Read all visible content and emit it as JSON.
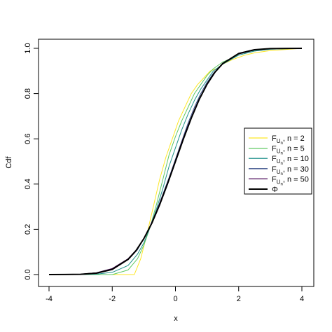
{
  "chart_data": {
    "type": "line",
    "title": "",
    "xlabel": "x",
    "ylabel": "Cdf",
    "xlim": [
      -4,
      4
    ],
    "ylim": [
      0,
      1
    ],
    "xticks": [
      -4,
      -2,
      0,
      2,
      4
    ],
    "yticks": [
      0.0,
      0.2,
      0.4,
      0.6,
      0.8,
      1.0
    ],
    "xtick_labels": [
      "-4",
      "-2",
      "0",
      "2",
      "4"
    ],
    "ytick_labels": [
      "0.0",
      "0.2",
      "0.4",
      "0.6",
      "0.8",
      "1.0"
    ],
    "grid": false,
    "legend_position": "right",
    "series": [
      {
        "legend_prefix": "F",
        "legend_sub": "U",
        "legend_subsub": "n",
        "legend_suffix": ", n = 2",
        "color": "#FDE725",
        "x": [
          -4.0,
          -3.0,
          -2.0,
          -1.6,
          -1.3,
          -1.1,
          -0.9,
          -0.7,
          -0.5,
          -0.3,
          -0.1,
          0.0,
          0.1,
          0.3,
          0.5,
          0.7,
          0.9,
          1.1,
          1.3,
          1.5,
          1.8,
          2.0,
          2.2,
          2.5,
          3.0,
          3.5,
          4.0
        ],
        "y": [
          0.0,
          0.0,
          0.0,
          0.0,
          0.0,
          0.07,
          0.18,
          0.3,
          0.42,
          0.52,
          0.6,
          0.64,
          0.68,
          0.74,
          0.8,
          0.84,
          0.87,
          0.9,
          0.91,
          0.93,
          0.95,
          0.96,
          0.97,
          0.98,
          0.99,
          0.995,
          1.0
        ]
      },
      {
        "legend_prefix": "F",
        "legend_sub": "U",
        "legend_subsub": "n",
        "legend_suffix": ", n = 5",
        "color": "#5EC962",
        "x": [
          -4.0,
          -3.0,
          -2.5,
          -2.0,
          -1.5,
          -1.2,
          -1.0,
          -0.8,
          -0.6,
          -0.4,
          -0.2,
          0.0,
          0.2,
          0.4,
          0.6,
          0.8,
          1.0,
          1.2,
          1.5,
          2.0,
          2.5,
          3.0,
          4.0
        ],
        "y": [
          0.0,
          0.0,
          0.0,
          0.0,
          0.02,
          0.07,
          0.13,
          0.21,
          0.31,
          0.42,
          0.53,
          0.61,
          0.68,
          0.74,
          0.8,
          0.84,
          0.88,
          0.91,
          0.94,
          0.97,
          0.988,
          0.996,
          1.0
        ]
      },
      {
        "legend_prefix": "F",
        "legend_sub": "U",
        "legend_subsub": "n",
        "legend_suffix": ", n = 10",
        "color": "#21918C",
        "x": [
          -4.0,
          -3.0,
          -2.5,
          -2.0,
          -1.5,
          -1.2,
          -1.0,
          -0.8,
          -0.6,
          -0.4,
          -0.2,
          0.0,
          0.2,
          0.4,
          0.6,
          0.8,
          1.0,
          1.2,
          1.5,
          2.0,
          2.5,
          3.0,
          4.0
        ],
        "y": [
          0.0,
          0.0,
          0.002,
          0.01,
          0.04,
          0.09,
          0.14,
          0.21,
          0.29,
          0.38,
          0.48,
          0.56,
          0.64,
          0.71,
          0.77,
          0.82,
          0.86,
          0.9,
          0.93,
          0.97,
          0.988,
          0.996,
          1.0
        ]
      },
      {
        "legend_prefix": "F",
        "legend_sub": "U",
        "legend_subsub": "n",
        "legend_suffix": ", n = 30",
        "color": "#3B528B",
        "x": [
          -4.0,
          -3.0,
          -2.5,
          -2.0,
          -1.5,
          -1.2,
          -1.0,
          -0.8,
          -0.6,
          -0.4,
          -0.2,
          0.0,
          0.2,
          0.4,
          0.6,
          0.8,
          1.0,
          1.2,
          1.5,
          2.0,
          2.5,
          3.0,
          4.0
        ],
        "y": [
          0.0,
          0.002,
          0.008,
          0.025,
          0.065,
          0.11,
          0.16,
          0.215,
          0.28,
          0.355,
          0.43,
          0.51,
          0.59,
          0.67,
          0.74,
          0.8,
          0.85,
          0.89,
          0.935,
          0.975,
          0.992,
          0.998,
          1.0
        ]
      },
      {
        "legend_prefix": "F",
        "legend_sub": "U",
        "legend_subsub": "n",
        "legend_suffix": ", n = 50",
        "color": "#440154",
        "x": [
          -4.0,
          -3.0,
          -2.5,
          -2.0,
          -1.5,
          -1.2,
          -1.0,
          -0.8,
          -0.6,
          -0.4,
          -0.2,
          0.0,
          0.2,
          0.4,
          0.6,
          0.8,
          1.0,
          1.2,
          1.5,
          2.0,
          2.5,
          3.0,
          4.0
        ],
        "y": [
          0.0,
          0.002,
          0.008,
          0.027,
          0.07,
          0.115,
          0.16,
          0.215,
          0.28,
          0.35,
          0.425,
          0.505,
          0.585,
          0.66,
          0.73,
          0.79,
          0.84,
          0.885,
          0.935,
          0.975,
          0.993,
          0.998,
          1.0
        ]
      },
      {
        "legend_prefix": "Φ",
        "legend_sub": "",
        "legend_subsub": "",
        "legend_suffix": "",
        "color": "#000000",
        "x": [
          -4.0,
          -3.5,
          -3.0,
          -2.5,
          -2.0,
          -1.5,
          -1.25,
          -1.0,
          -0.75,
          -0.5,
          -0.25,
          0.0,
          0.25,
          0.5,
          0.75,
          1.0,
          1.25,
          1.5,
          2.0,
          2.5,
          3.0,
          3.5,
          4.0
        ],
        "y": [
          0.0,
          0.0002,
          0.0013,
          0.0062,
          0.0228,
          0.0668,
          0.1056,
          0.1587,
          0.2266,
          0.3085,
          0.4013,
          0.5,
          0.5987,
          0.6915,
          0.7734,
          0.8413,
          0.8944,
          0.9332,
          0.9772,
          0.9938,
          0.9987,
          0.9998,
          1.0
        ]
      }
    ]
  }
}
